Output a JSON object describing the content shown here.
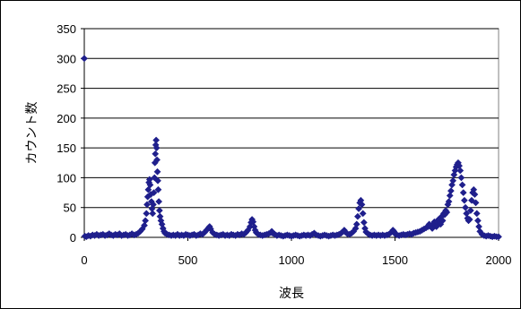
{
  "chart_data": {
    "type": "scatter",
    "title": "",
    "xlabel": "波長",
    "ylabel": "カウント数",
    "xlim": [
      0,
      2000
    ],
    "ylim": [
      0,
      350
    ],
    "x_ticks": [
      0,
      500,
      1000,
      1500,
      2000
    ],
    "y_ticks": [
      0,
      50,
      100,
      150,
      200,
      250,
      300,
      350
    ],
    "grid": "horizontal",
    "legend": "none",
    "marker": "diamond",
    "series": [
      {
        "color": "#1f1f8c",
        "points": [
          [
            0,
            300
          ],
          [
            3,
            2
          ],
          [
            10,
            1
          ],
          [
            20,
            3
          ],
          [
            30,
            2
          ],
          [
            40,
            4
          ],
          [
            50,
            3
          ],
          [
            60,
            5
          ],
          [
            70,
            3
          ],
          [
            80,
            4
          ],
          [
            90,
            5
          ],
          [
            100,
            3
          ],
          [
            110,
            4
          ],
          [
            120,
            6
          ],
          [
            130,
            4
          ],
          [
            140,
            3
          ],
          [
            150,
            5
          ],
          [
            160,
            4
          ],
          [
            170,
            6
          ],
          [
            180,
            3
          ],
          [
            190,
            4
          ],
          [
            200,
            5
          ],
          [
            210,
            3
          ],
          [
            220,
            4
          ],
          [
            230,
            6
          ],
          [
            240,
            4
          ],
          [
            250,
            5
          ],
          [
            260,
            7
          ],
          [
            270,
            10
          ],
          [
            280,
            14
          ],
          [
            290,
            20
          ],
          [
            295,
            28
          ],
          [
            300,
            40
          ],
          [
            303,
            55
          ],
          [
            306,
            68
          ],
          [
            309,
            80
          ],
          [
            312,
            92
          ],
          [
            315,
            97
          ],
          [
            318,
            88
          ],
          [
            321,
            72
          ],
          [
            324,
            60
          ],
          [
            327,
            48
          ],
          [
            330,
            40
          ],
          [
            333,
            55
          ],
          [
            336,
            75
          ],
          [
            339,
            100
          ],
          [
            341,
            125
          ],
          [
            343,
            140
          ],
          [
            345,
            155
          ],
          [
            347,
            163
          ],
          [
            349,
            150
          ],
          [
            351,
            130
          ],
          [
            353,
            110
          ],
          [
            355,
            95
          ],
          [
            357,
            80
          ],
          [
            360,
            60
          ],
          [
            363,
            45
          ],
          [
            366,
            35
          ],
          [
            370,
            28
          ],
          [
            375,
            22
          ],
          [
            380,
            15
          ],
          [
            385,
            10
          ],
          [
            390,
            7
          ],
          [
            400,
            5
          ],
          [
            410,
            4
          ],
          [
            420,
            3
          ],
          [
            430,
            4
          ],
          [
            440,
            3
          ],
          [
            450,
            5
          ],
          [
            460,
            3
          ],
          [
            470,
            4
          ],
          [
            480,
            3
          ],
          [
            490,
            5
          ],
          [
            500,
            4
          ],
          [
            510,
            3
          ],
          [
            520,
            4
          ],
          [
            530,
            5
          ],
          [
            540,
            3
          ],
          [
            550,
            4
          ],
          [
            560,
            6
          ],
          [
            570,
            5
          ],
          [
            580,
            8
          ],
          [
            590,
            12
          ],
          [
            600,
            16
          ],
          [
            605,
            18
          ],
          [
            610,
            14
          ],
          [
            620,
            8
          ],
          [
            630,
            5
          ],
          [
            640,
            4
          ],
          [
            650,
            3
          ],
          [
            660,
            4
          ],
          [
            670,
            5
          ],
          [
            680,
            3
          ],
          [
            690,
            4
          ],
          [
            700,
            3
          ],
          [
            710,
            5
          ],
          [
            720,
            4
          ],
          [
            730,
            3
          ],
          [
            740,
            5
          ],
          [
            750,
            4
          ],
          [
            760,
            6
          ],
          [
            770,
            5
          ],
          [
            780,
            8
          ],
          [
            790,
            12
          ],
          [
            800,
            18
          ],
          [
            805,
            25
          ],
          [
            810,
            30
          ],
          [
            815,
            26
          ],
          [
            820,
            18
          ],
          [
            825,
            12
          ],
          [
            830,
            8
          ],
          [
            840,
            5
          ],
          [
            850,
            4
          ],
          [
            860,
            3
          ],
          [
            870,
            4
          ],
          [
            880,
            5
          ],
          [
            890,
            6
          ],
          [
            900,
            8
          ],
          [
            905,
            10
          ],
          [
            910,
            7
          ],
          [
            920,
            5
          ],
          [
            930,
            3
          ],
          [
            940,
            4
          ],
          [
            950,
            3
          ],
          [
            960,
            2
          ],
          [
            970,
            3
          ],
          [
            980,
            4
          ],
          [
            990,
            3
          ],
          [
            1000,
            2
          ],
          [
            1010,
            3
          ],
          [
            1020,
            4
          ],
          [
            1030,
            3
          ],
          [
            1040,
            2
          ],
          [
            1050,
            3
          ],
          [
            1060,
            4
          ],
          [
            1070,
            3
          ],
          [
            1080,
            4
          ],
          [
            1090,
            3
          ],
          [
            1100,
            5
          ],
          [
            1110,
            7
          ],
          [
            1120,
            4
          ],
          [
            1130,
            3
          ],
          [
            1140,
            2
          ],
          [
            1150,
            3
          ],
          [
            1160,
            4
          ],
          [
            1170,
            3
          ],
          [
            1180,
            2
          ],
          [
            1190,
            3
          ],
          [
            1200,
            4
          ],
          [
            1210,
            3
          ],
          [
            1220,
            4
          ],
          [
            1230,
            5
          ],
          [
            1240,
            7
          ],
          [
            1250,
            10
          ],
          [
            1255,
            12
          ],
          [
            1260,
            9
          ],
          [
            1270,
            6
          ],
          [
            1280,
            5
          ],
          [
            1290,
            7
          ],
          [
            1300,
            10
          ],
          [
            1310,
            15
          ],
          [
            1315,
            22
          ],
          [
            1320,
            35
          ],
          [
            1325,
            48
          ],
          [
            1330,
            58
          ],
          [
            1335,
            62
          ],
          [
            1340,
            55
          ],
          [
            1345,
            40
          ],
          [
            1350,
            25
          ],
          [
            1355,
            15
          ],
          [
            1360,
            9
          ],
          [
            1370,
            6
          ],
          [
            1380,
            4
          ],
          [
            1390,
            3
          ],
          [
            1400,
            4
          ],
          [
            1410,
            3
          ],
          [
            1420,
            4
          ],
          [
            1430,
            3
          ],
          [
            1440,
            4
          ],
          [
            1450,
            3
          ],
          [
            1460,
            4
          ],
          [
            1470,
            5
          ],
          [
            1480,
            8
          ],
          [
            1490,
            12
          ],
          [
            1495,
            10
          ],
          [
            1500,
            6
          ],
          [
            1510,
            4
          ],
          [
            1520,
            3
          ],
          [
            1530,
            4
          ],
          [
            1540,
            5
          ],
          [
            1550,
            4
          ],
          [
            1560,
            5
          ],
          [
            1570,
            6
          ],
          [
            1580,
            5
          ],
          [
            1590,
            7
          ],
          [
            1600,
            8
          ],
          [
            1610,
            9
          ],
          [
            1620,
            10
          ],
          [
            1630,
            12
          ],
          [
            1640,
            14
          ],
          [
            1650,
            16
          ],
          [
            1660,
            18
          ],
          [
            1665,
            22
          ],
          [
            1670,
            20
          ],
          [
            1675,
            17
          ],
          [
            1680,
            15
          ],
          [
            1685,
            22
          ],
          [
            1690,
            26
          ],
          [
            1695,
            20
          ],
          [
            1700,
            18
          ],
          [
            1705,
            25
          ],
          [
            1710,
            30
          ],
          [
            1715,
            24
          ],
          [
            1720,
            22
          ],
          [
            1725,
            35
          ],
          [
            1730,
            28
          ],
          [
            1735,
            40
          ],
          [
            1740,
            38
          ],
          [
            1745,
            45
          ],
          [
            1750,
            42
          ],
          [
            1755,
            55
          ],
          [
            1760,
            60
          ],
          [
            1765,
            70
          ],
          [
            1770,
            78
          ],
          [
            1775,
            88
          ],
          [
            1780,
            95
          ],
          [
            1785,
            105
          ],
          [
            1790,
            112
          ],
          [
            1795,
            118
          ],
          [
            1800,
            122
          ],
          [
            1805,
            125
          ],
          [
            1810,
            120
          ],
          [
            1815,
            112
          ],
          [
            1820,
            100
          ],
          [
            1825,
            88
          ],
          [
            1830,
            75
          ],
          [
            1835,
            62
          ],
          [
            1840,
            50
          ],
          [
            1845,
            40
          ],
          [
            1850,
            32
          ],
          [
            1855,
            28
          ],
          [
            1860,
            30
          ],
          [
            1865,
            45
          ],
          [
            1870,
            62
          ],
          [
            1875,
            75
          ],
          [
            1880,
            80
          ],
          [
            1885,
            72
          ],
          [
            1890,
            58
          ],
          [
            1895,
            40
          ],
          [
            1900,
            28
          ],
          [
            1905,
            18
          ],
          [
            1910,
            10
          ],
          [
            1920,
            5
          ],
          [
            1930,
            3
          ],
          [
            1940,
            2
          ],
          [
            1950,
            3
          ],
          [
            1960,
            2
          ],
          [
            1970,
            1
          ],
          [
            1980,
            2
          ],
          [
            1990,
            1
          ],
          [
            2000,
            1
          ]
        ]
      }
    ]
  }
}
